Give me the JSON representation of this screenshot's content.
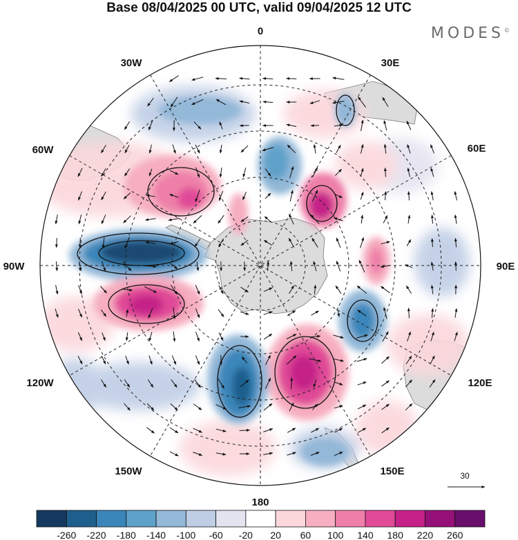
{
  "title": "Base 08/04/2025 00 UTC, valid 09/04/2025 12 UTC",
  "brand": "MODES",
  "brand_mark": "©",
  "longitude_labels": [
    {
      "id": "lon-0",
      "text": "0"
    },
    {
      "id": "lon-30e",
      "text": "30E"
    },
    {
      "id": "lon-60e",
      "text": "60E"
    },
    {
      "id": "lon-90e",
      "text": "90E"
    },
    {
      "id": "lon-120e",
      "text": "120E"
    },
    {
      "id": "lon-150e",
      "text": "150E"
    },
    {
      "id": "lon-180",
      "text": "180"
    },
    {
      "id": "lon-150w",
      "text": "150W"
    },
    {
      "id": "lon-120w",
      "text": "120W"
    },
    {
      "id": "lon-90w",
      "text": "90W"
    },
    {
      "id": "lon-60w",
      "text": "60W"
    },
    {
      "id": "lon-30w",
      "text": "30W"
    }
  ],
  "vector_reference": {
    "value": "30"
  },
  "colorbar": {
    "ticks": [
      "-260",
      "-220",
      "-180",
      "-140",
      "-100",
      "-60",
      "-20",
      "20",
      "60",
      "100",
      "140",
      "180",
      "220",
      "260"
    ],
    "colors": [
      "#163a5f",
      "#1f5f8d",
      "#3a86ba",
      "#5ea1c9",
      "#93b8d8",
      "#bfcde5",
      "#e4e3f0",
      "#ffffff",
      "#fbd7db",
      "#f6aec0",
      "#ee7fa8",
      "#e04a97",
      "#c52188",
      "#961079",
      "#6a0e6b"
    ]
  },
  "anomaly_colors": {
    "strong_negative": "#1b4a72",
    "negative": "#3a86ba",
    "weak_negative": "#bfcde5",
    "weak_positive": "#fbd7db",
    "positive": "#ee7fa8",
    "strong_positive": "#c52188",
    "land": "#dcdcdc"
  }
}
